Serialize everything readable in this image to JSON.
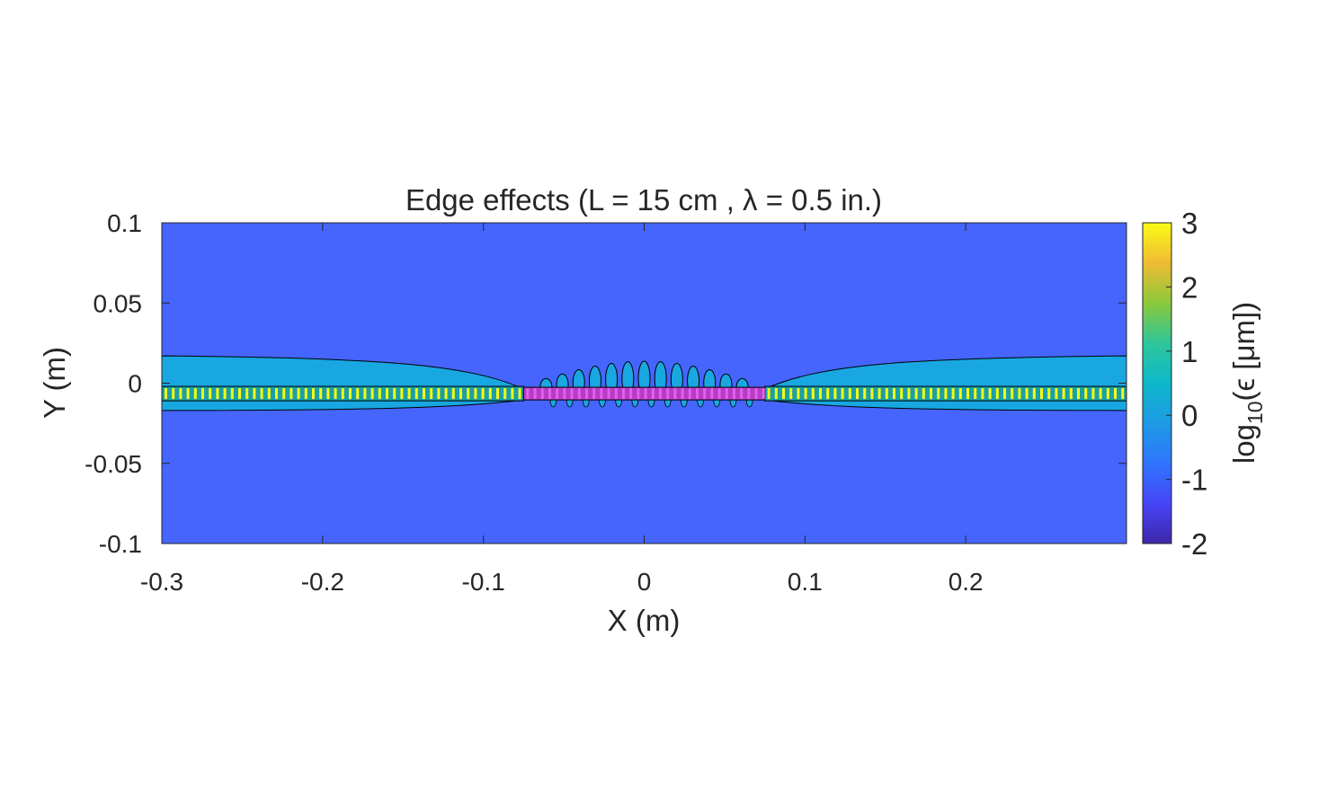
{
  "chart_data": {
    "type": "heatmap",
    "title": "Edge effects (L = 15 cm , λ = 0.5 in.)",
    "xlabel": "X (m)",
    "ylabel": "Y (m)",
    "xlim": [
      -0.3,
      0.3
    ],
    "ylim": [
      -0.1,
      0.1
    ],
    "x_ticks": [
      -0.3,
      -0.2,
      -0.1,
      0,
      0.1,
      0.2
    ],
    "x_tick_labels": [
      "-0.3",
      "-0.2",
      "-0.1",
      "0",
      "0.1",
      "0.2"
    ],
    "y_ticks": [
      0.1,
      0.05,
      0,
      -0.05,
      -0.1
    ],
    "y_tick_labels": [
      "0.1",
      "0.05",
      "0",
      "-0.05",
      "-0.1"
    ],
    "colorbar": {
      "label_main": "log",
      "label_sub": "10",
      "label_rest": "(ϵ [μm])",
      "range": [
        -2,
        3
      ],
      "ticks": [
        3,
        2,
        1,
        0,
        -1,
        -2
      ],
      "tick_labels": [
        "3",
        "2",
        "1",
        "0",
        "-1",
        "-2"
      ],
      "colormap": "parula"
    },
    "regions": {
      "background_level": -1,
      "background_color": "#4565fd",
      "halo_level": 0,
      "halo_color": "#18a7e1",
      "core_level_max": 3,
      "core_color": "#f9fb0e",
      "center_core_color": "#b73cc2",
      "sample_half_length": 0.075,
      "halo_half_width_edge": 0.017,
      "center_lobe_count": 13
    },
    "grid": false,
    "legend": "none"
  }
}
